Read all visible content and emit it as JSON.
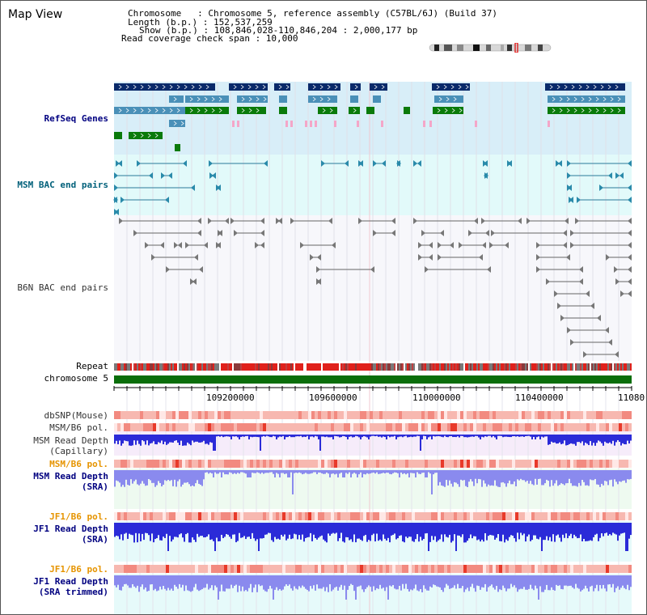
{
  "title": "Map View",
  "header": {
    "chromosome_line": "Chromosome   : Chromosome 5, reference assembly (C57BL/6J) (Build 37)",
    "length_line": "Length (b.p.) : 152,537,259",
    "show_line": "Show (b.p.) : 108,846,028-110,846,204 : 2,000,177 bp",
    "coverage_line": "Read coverage check span : 10,000"
  },
  "tracks": {
    "refseq": "RefSeq Genes",
    "msm_bac": "MSM BAC end pairs",
    "b6n_bac": "B6N BAC end pairs",
    "repeat": "Repeat",
    "chromosome": "chromosome 5",
    "dbsnp": "dbSNP(Mouse)",
    "msm_b6_pol": "MSM/B6 pol.",
    "msm_depth_cap": "MSM Read Depth\n(Capillary)",
    "msm_b6_pol_sra": "MSM/B6 pol.",
    "msm_depth_sra": "MSM Read Depth\n(SRA)",
    "jf1_b6_pol": "JF1/B6 pol.",
    "jf1_depth_sra": "JF1 Read Depth\n(SRA)",
    "jf1_b6_pol_trim": "JF1/B6 pol.",
    "jf1_depth_trim": "JF1 Read Depth\n(SRA trimmed)"
  },
  "axis": {
    "ticks": [
      "109200000",
      "109600000",
      "110000000",
      "110400000",
      "11080"
    ]
  },
  "colors": {
    "refseq_bg": "#d8eef8",
    "msm_bac_bg": "#e2fafa",
    "refseq_navy": "#0a2a6a",
    "refseq_steel": "#4a90b8",
    "refseq_green": "#0a7a0a",
    "refseq_pink": "#f4a6c8",
    "chromosome_green": "#0a6e0a",
    "depth_capillary": "#2b2bd8",
    "depth_sra": "#8a8aee",
    "jf1_label": "#e69400",
    "pol_bar": "#f7b8b0",
    "pol_strong": "#e83a2a"
  }
}
